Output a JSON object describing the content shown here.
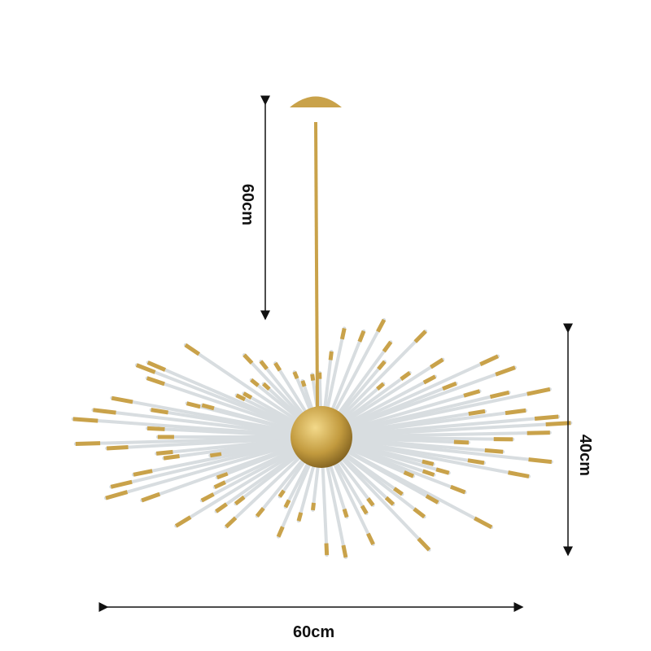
{
  "dimensions": {
    "drop_height": "60cm",
    "body_height": "40cm",
    "width": "60cm"
  },
  "colors": {
    "brass": "#c9a24a",
    "arrow": "#111111"
  }
}
